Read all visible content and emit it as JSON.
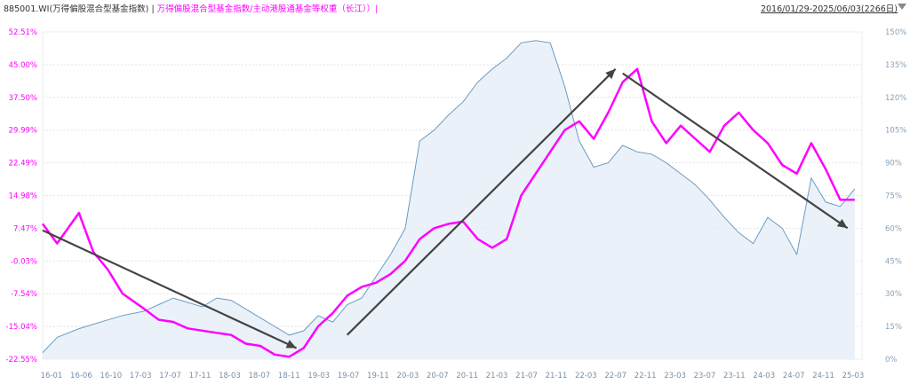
{
  "header": {
    "code_title": "885001.WI(万得偏股混合型基金指数)",
    "separator": "|",
    "compare_title": "万得偏股混合型基金指数/主动港股通基金等权重（长江））|",
    "date_range": "2016/01/29-2025/06/03(2266日)"
  },
  "colors": {
    "left_series": "#ff00ff",
    "right_series": "#6a9cc4",
    "area_fill": "#e6eef6",
    "arrow": "#444444",
    "grid": "#e4e4e4"
  },
  "chart_data": {
    "type": "line",
    "x_tick_labels": [
      "16-01",
      "16-06",
      "16-10",
      "17-03",
      "17-07",
      "17-11",
      "18-03",
      "18-07",
      "18-11",
      "19-03",
      "19-07",
      "19-11",
      "20-03",
      "20-07",
      "20-11",
      "21-03",
      "21-07",
      "21-11",
      "22-03",
      "22-07",
      "22-11",
      "23-03",
      "23-07",
      "23-11",
      "24-03",
      "24-07",
      "24-11",
      "25-03"
    ],
    "y_left_tick_labels": [
      "52.51%",
      "45.00%",
      "37.50%",
      "29.99%",
      "22.49%",
      "14.98%",
      "7.47%",
      "-0.03%",
      "-7.54%",
      "-15.04%",
      "-22.55%"
    ],
    "y_right_tick_labels": [
      "150%",
      "135%",
      "120%",
      "105%",
      "90%",
      "75%",
      "60%",
      "45%",
      "30%",
      "15%",
      "0%"
    ],
    "y_left_range": [
      -22.55,
      52.51
    ],
    "y_right_range": [
      0,
      150
    ],
    "series": [
      {
        "axis": "left",
        "style": "line",
        "x": [
          "2016-01",
          "2016-03",
          "2016-06",
          "2016-08",
          "2016-10",
          "2016-12",
          "2017-03",
          "2017-05",
          "2017-07",
          "2017-09",
          "2017-11",
          "2018-01",
          "2018-03",
          "2018-05",
          "2018-07",
          "2018-09",
          "2018-11",
          "2019-01",
          "2019-03",
          "2019-05",
          "2019-07",
          "2019-09",
          "2019-11",
          "2020-01",
          "2020-03",
          "2020-05",
          "2020-07",
          "2020-09",
          "2020-11",
          "2021-01",
          "2021-03",
          "2021-05",
          "2021-07",
          "2021-09",
          "2021-11",
          "2022-01",
          "2022-03",
          "2022-05",
          "2022-07",
          "2022-09",
          "2022-11",
          "2023-01",
          "2023-03",
          "2023-05",
          "2023-07",
          "2023-09",
          "2023-11",
          "2024-01",
          "2024-03",
          "2024-05",
          "2024-07",
          "2024-09",
          "2024-11",
          "2025-01",
          "2025-03",
          "2025-05"
        ],
        "y": [
          8.5,
          4.0,
          11.0,
          2.0,
          -2.0,
          -7.5,
          -11.0,
          -13.5,
          -14.0,
          -15.5,
          -16.0,
          -16.5,
          -17.0,
          -19.0,
          -19.5,
          -21.5,
          -22.0,
          -20.0,
          -15.0,
          -12.0,
          -8.0,
          -6.0,
          -5.0,
          -3.0,
          0.0,
          5.0,
          7.5,
          8.5,
          9.0,
          5.0,
          3.0,
          5.0,
          15.0,
          20.0,
          25.0,
          30.0,
          32.0,
          28.0,
          34.0,
          41.0,
          44.0,
          32.0,
          27.0,
          31.0,
          28.0,
          25.0,
          31.0,
          34.0,
          30.0,
          27.0,
          22.0,
          20.0,
          27.0,
          21.0,
          14.0,
          14.0
        ]
      },
      {
        "axis": "right",
        "style": "area",
        "x": [
          "2016-01",
          "2016-03",
          "2016-06",
          "2016-08",
          "2016-10",
          "2016-12",
          "2017-03",
          "2017-05",
          "2017-07",
          "2017-09",
          "2017-11",
          "2018-01",
          "2018-03",
          "2018-05",
          "2018-07",
          "2018-09",
          "2018-11",
          "2019-01",
          "2019-03",
          "2019-05",
          "2019-07",
          "2019-09",
          "2019-11",
          "2020-01",
          "2020-03",
          "2020-05",
          "2020-07",
          "2020-09",
          "2020-11",
          "2021-01",
          "2021-03",
          "2021-05",
          "2021-07",
          "2021-09",
          "2021-11",
          "2022-01",
          "2022-03",
          "2022-05",
          "2022-07",
          "2022-09",
          "2022-11",
          "2023-01",
          "2023-03",
          "2023-05",
          "2023-07",
          "2023-09",
          "2023-11",
          "2024-01",
          "2024-03",
          "2024-05",
          "2024-07",
          "2024-09",
          "2024-11",
          "2025-01",
          "2025-03",
          "2025-05"
        ],
        "y": [
          3,
          10,
          14,
          16,
          18,
          20,
          22,
          25,
          28,
          26,
          24,
          28,
          27,
          23,
          19,
          15,
          11,
          13,
          20,
          17,
          25,
          28,
          38,
          48,
          60,
          100,
          105,
          112,
          118,
          127,
          133,
          138,
          145,
          146,
          145,
          125,
          100,
          88,
          90,
          98,
          95,
          94,
          90,
          85,
          80,
          73,
          65,
          58,
          53,
          65,
          60,
          48,
          83,
          72,
          70,
          78
        ]
      }
    ],
    "trend_arrows": [
      {
        "from": [
          "2016-01",
          7.0
        ],
        "to": [
          "2018-12",
          -20.0
        ]
      },
      {
        "from": [
          "2019-07",
          -17.0
        ],
        "to": [
          "2022-08",
          44.0
        ]
      },
      {
        "from": [
          "2022-09",
          43.0
        ],
        "to": [
          "2025-04",
          7.5
        ]
      }
    ]
  }
}
